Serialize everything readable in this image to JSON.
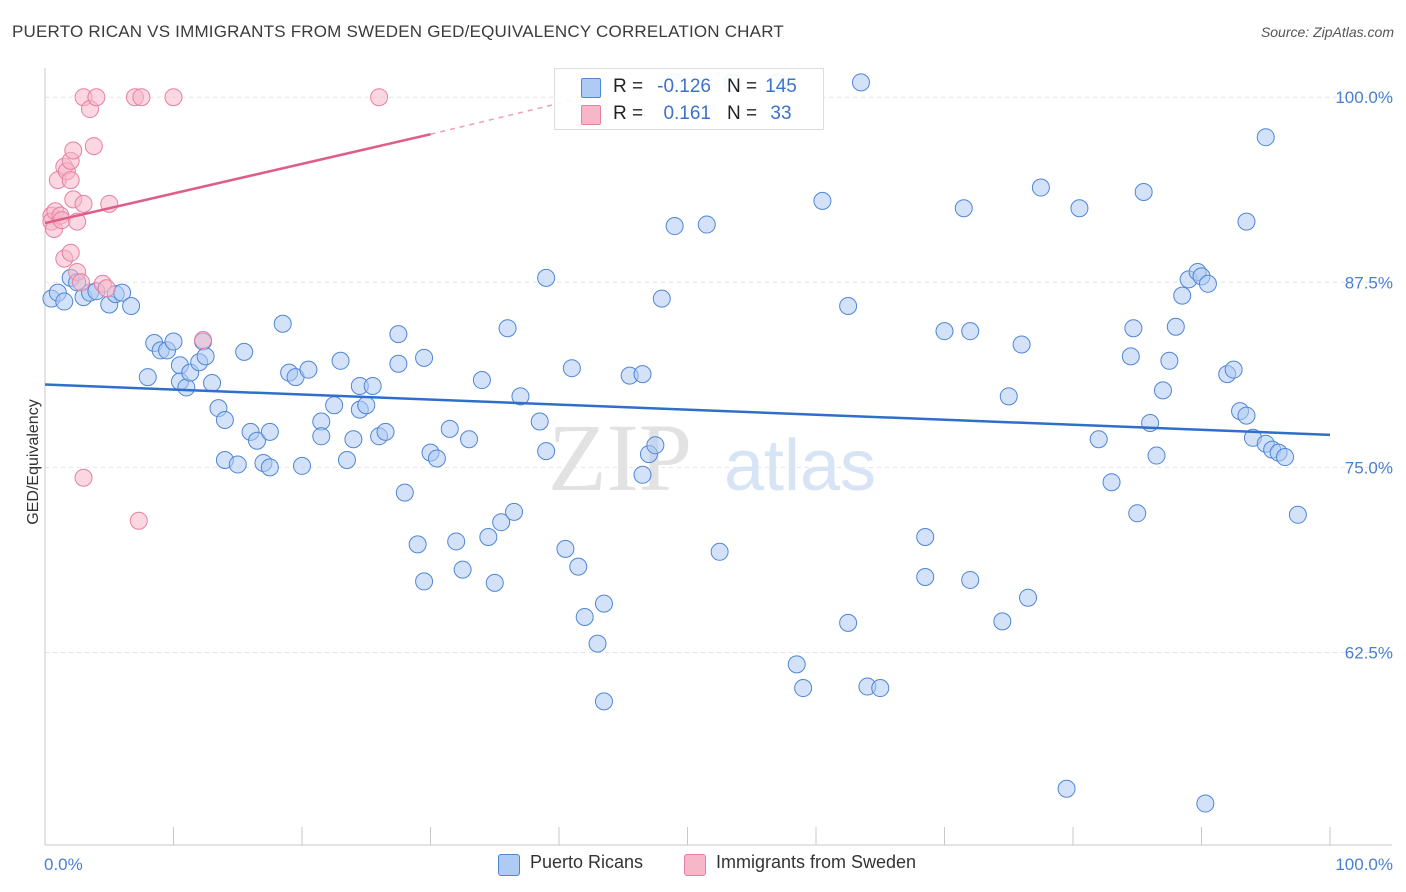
{
  "title": "PUERTO RICAN VS IMMIGRANTS FROM SWEDEN GED/EQUIVALENCY CORRELATION CHART",
  "source": "Source: ZipAtlas.com",
  "watermark": {
    "zip": "ZIP",
    "atlas": "atlas"
  },
  "stats": [
    {
      "r_label": "R =",
      "r_value": "-0.126",
      "n_label": "N =",
      "n_value": "145",
      "color": "#aecbf3"
    },
    {
      "r_label": "R =",
      "r_value": "0.161",
      "n_label": "N =",
      "n_value": "33",
      "color": "#f6b7c9"
    }
  ],
  "legend": [
    {
      "label": "Puerto Ricans",
      "color": "#aecbf3"
    },
    {
      "label": "Immigrants from Sweden",
      "color": "#f6b7c9"
    }
  ],
  "chart_data": {
    "type": "scatter",
    "title": "",
    "xlabel": "",
    "ylabel": "GED/Equivalency",
    "xlim": [
      0,
      100
    ],
    "ylim": [
      49.5,
      101.5
    ],
    "x_tick_labels": [
      "0.0%",
      "100.0%"
    ],
    "y_ticks": [
      62.5,
      75.0,
      87.5,
      100.0
    ],
    "y_tick_labels": [
      "62.5%",
      "75.0%",
      "87.5%",
      "100.0%"
    ],
    "grid": true,
    "colors": {
      "blue": "#4f86d6",
      "blue_fill": "#aecbf3",
      "blue_line": "#2f6fcb",
      "pink": "#e87fa3",
      "pink_fill": "#f6b7c9",
      "pink_line": "#e05d8a",
      "tick": "#4a7fd0",
      "grid": "#e4e4e4"
    },
    "series": [
      {
        "name": "Puerto Ricans",
        "trend": {
          "x": [
            0,
            100
          ],
          "y": [
            80.6,
            77.2
          ]
        },
        "points": [
          [
            0.5,
            86.4
          ],
          [
            1.0,
            86.8
          ],
          [
            1.5,
            86.2
          ],
          [
            2.0,
            87.8
          ],
          [
            2.5,
            87.5
          ],
          [
            3.0,
            86.5
          ],
          [
            3.5,
            86.8
          ],
          [
            4.0,
            86.9
          ],
          [
            5.0,
            86.0
          ],
          [
            5.5,
            86.7
          ],
          [
            6.0,
            86.8
          ],
          [
            6.7,
            85.9
          ],
          [
            8.0,
            81.1
          ],
          [
            8.5,
            83.4
          ],
          [
            9.0,
            82.9
          ],
          [
            9.5,
            82.9
          ],
          [
            10.0,
            83.5
          ],
          [
            10.5,
            81.9
          ],
          [
            10.5,
            80.8
          ],
          [
            11.0,
            80.4
          ],
          [
            11.3,
            81.4
          ],
          [
            12.0,
            82.1
          ],
          [
            12.3,
            83.5
          ],
          [
            12.5,
            82.5
          ],
          [
            13.0,
            80.7
          ],
          [
            13.5,
            79.0
          ],
          [
            14.0,
            78.2
          ],
          [
            14.0,
            75.5
          ],
          [
            15.0,
            75.2
          ],
          [
            15.5,
            82.8
          ],
          [
            16.0,
            77.4
          ],
          [
            16.5,
            76.8
          ],
          [
            17.0,
            75.3
          ],
          [
            17.5,
            77.4
          ],
          [
            17.5,
            75.0
          ],
          [
            18.5,
            84.7
          ],
          [
            19.0,
            81.4
          ],
          [
            19.5,
            81.1
          ],
          [
            20.0,
            75.1
          ],
          [
            20.5,
            81.6
          ],
          [
            21.5,
            78.1
          ],
          [
            21.5,
            77.1
          ],
          [
            22.5,
            79.2
          ],
          [
            23.0,
            82.2
          ],
          [
            23.5,
            75.5
          ],
          [
            24.0,
            76.9
          ],
          [
            24.5,
            80.5
          ],
          [
            24.5,
            78.9
          ],
          [
            25.0,
            79.2
          ],
          [
            25.5,
            80.5
          ],
          [
            26.0,
            77.1
          ],
          [
            26.5,
            77.4
          ],
          [
            27.5,
            84.0
          ],
          [
            27.5,
            82.0
          ],
          [
            28.0,
            73.3
          ],
          [
            29.0,
            69.8
          ],
          [
            29.5,
            67.3
          ],
          [
            29.5,
            82.4
          ],
          [
            30.0,
            76.0
          ],
          [
            30.5,
            75.6
          ],
          [
            31.5,
            77.6
          ],
          [
            32.0,
            70.0
          ],
          [
            32.5,
            68.1
          ],
          [
            33.0,
            76.9
          ],
          [
            34.0,
            80.9
          ],
          [
            34.5,
            70.3
          ],
          [
            35.0,
            67.2
          ],
          [
            35.5,
            71.3
          ],
          [
            36.0,
            84.4
          ],
          [
            36.5,
            72.0
          ],
          [
            37.0,
            79.8
          ],
          [
            38.5,
            78.1
          ],
          [
            39.0,
            76.1
          ],
          [
            39.0,
            87.8
          ],
          [
            40.5,
            69.5
          ],
          [
            41.0,
            81.7
          ],
          [
            41.5,
            68.3
          ],
          [
            42.0,
            64.9
          ],
          [
            43.0,
            63.1
          ],
          [
            43.5,
            65.8
          ],
          [
            43.5,
            59.2
          ],
          [
            45.5,
            81.2
          ],
          [
            46.5,
            81.3
          ],
          [
            46.5,
            74.5
          ],
          [
            47.0,
            75.9
          ],
          [
            47.5,
            76.5
          ],
          [
            48.0,
            86.4
          ],
          [
            49.0,
            91.3
          ],
          [
            49.0,
            101.0
          ],
          [
            51.5,
            91.4
          ],
          [
            52.5,
            69.3
          ],
          [
            53.5,
            101.0
          ],
          [
            57.0,
            101.0
          ],
          [
            58.5,
            61.7
          ],
          [
            59.0,
            60.1
          ],
          [
            60.5,
            93.0
          ],
          [
            62.5,
            64.5
          ],
          [
            62.5,
            85.9
          ],
          [
            63.5,
            101.0
          ],
          [
            64.0,
            60.2
          ],
          [
            65.0,
            60.1
          ],
          [
            68.5,
            67.6
          ],
          [
            68.5,
            70.3
          ],
          [
            70.0,
            84.2
          ],
          [
            71.5,
            92.5
          ],
          [
            72.0,
            84.2
          ],
          [
            72.0,
            67.4
          ],
          [
            74.5,
            64.6
          ],
          [
            75.0,
            79.8
          ],
          [
            76.0,
            83.3
          ],
          [
            76.5,
            66.2
          ],
          [
            77.5,
            93.9
          ],
          [
            80.5,
            92.5
          ],
          [
            82.0,
            76.9
          ],
          [
            83.0,
            74.0
          ],
          [
            84.5,
            82.5
          ],
          [
            84.7,
            84.4
          ],
          [
            85.0,
            71.9
          ],
          [
            85.5,
            93.6
          ],
          [
            86.0,
            78.0
          ],
          [
            86.5,
            75.8
          ],
          [
            87.0,
            80.2
          ],
          [
            87.5,
            82.2
          ],
          [
            88.0,
            84.5
          ],
          [
            88.5,
            86.6
          ],
          [
            89.0,
            87.7
          ],
          [
            89.7,
            88.2
          ],
          [
            90.0,
            87.9
          ],
          [
            90.5,
            87.4
          ],
          [
            92.0,
            81.3
          ],
          [
            92.5,
            81.6
          ],
          [
            93.0,
            78.8
          ],
          [
            93.5,
            78.5
          ],
          [
            94.0,
            77.0
          ],
          [
            95.0,
            76.6
          ],
          [
            95.5,
            76.2
          ],
          [
            96.0,
            76.0
          ],
          [
            96.5,
            75.7
          ],
          [
            97.5,
            71.8
          ],
          [
            93.5,
            91.6
          ],
          [
            95.0,
            97.3
          ],
          [
            79.5,
            53.3
          ],
          [
            90.3,
            52.3
          ]
        ]
      },
      {
        "name": "Immigrants from Sweden",
        "trend": {
          "x": [
            0,
            30
          ],
          "y": [
            91.5,
            97.5
          ]
        },
        "trend_dashed": {
          "x": [
            30,
            42
          ],
          "y": [
            97.5,
            100.0
          ]
        },
        "points": [
          [
            0.5,
            92.0
          ],
          [
            0.5,
            91.6
          ],
          [
            0.7,
            91.1
          ],
          [
            0.8,
            92.3
          ],
          [
            1.0,
            94.4
          ],
          [
            1.2,
            92.0
          ],
          [
            1.3,
            91.7
          ],
          [
            1.5,
            89.1
          ],
          [
            1.5,
            95.3
          ],
          [
            1.7,
            95.0
          ],
          [
            2.0,
            94.4
          ],
          [
            2.0,
            95.7
          ],
          [
            2.0,
            89.5
          ],
          [
            2.2,
            93.1
          ],
          [
            2.2,
            96.4
          ],
          [
            2.5,
            88.2
          ],
          [
            2.5,
            91.6
          ],
          [
            2.8,
            87.5
          ],
          [
            3.0,
            92.8
          ],
          [
            3.0,
            100.0
          ],
          [
            3.5,
            99.2
          ],
          [
            3.8,
            96.7
          ],
          [
            4.0,
            100.0
          ],
          [
            4.5,
            87.4
          ],
          [
            4.8,
            87.1
          ],
          [
            5.0,
            92.8
          ],
          [
            7.0,
            100.0
          ],
          [
            7.5,
            100.0
          ],
          [
            10.0,
            100.0
          ],
          [
            12.3,
            83.6
          ],
          [
            3.0,
            74.3
          ],
          [
            7.3,
            71.4
          ],
          [
            26.0,
            100.0
          ]
        ]
      }
    ]
  }
}
